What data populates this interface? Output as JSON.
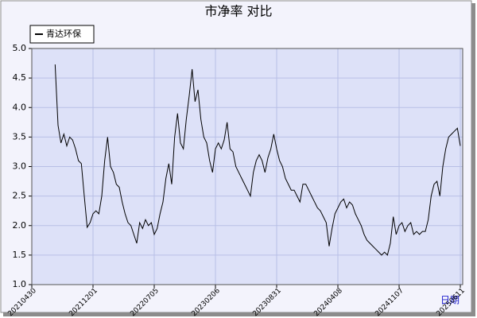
{
  "chart_data": {
    "type": "line",
    "title": "市净率  对比",
    "x_label": "日期",
    "legend": "top-left",
    "grid": true,
    "ylim": [
      1,
      5
    ],
    "yticks": [
      {
        "value": 1,
        "label": "1.0"
      },
      1.5,
      {
        "value": 2,
        "label": "2.0"
      },
      2.5,
      {
        "value": 3,
        "label": "3.0"
      },
      3.5,
      {
        "value": 4,
        "label": "4.0"
      },
      4.5,
      {
        "value": 5,
        "label": "5.0"
      }
    ],
    "categories": [
      "20210430",
      null,
      null,
      null,
      null,
      null,
      null,
      null,
      null,
      null,
      null,
      null,
      null,
      null,
      null,
      null,
      null,
      null,
      null,
      null,
      null,
      "20211201",
      null,
      null,
      null,
      null,
      null,
      null,
      null,
      null,
      null,
      null,
      null,
      null,
      null,
      null,
      null,
      null,
      null,
      null,
      null,
      null,
      "20220705",
      null,
      null,
      null,
      null,
      null,
      null,
      null,
      null,
      null,
      null,
      null,
      null,
      null,
      null,
      null,
      null,
      null,
      null,
      null,
      null,
      "20230206",
      null,
      null,
      null,
      null,
      null,
      null,
      null,
      null,
      null,
      null,
      null,
      null,
      null,
      null,
      null,
      null,
      null,
      null,
      null,
      null,
      "20230831",
      null,
      null,
      null,
      null,
      null,
      null,
      null,
      null,
      null,
      null,
      null,
      null,
      null,
      null,
      null,
      null,
      null,
      null,
      null,
      null,
      "20240408",
      null,
      null,
      null,
      null,
      null,
      null,
      null,
      null,
      null,
      null,
      null,
      null,
      null,
      null,
      null,
      null,
      null,
      null,
      null,
      null,
      "20241107",
      null,
      null,
      null,
      null,
      null,
      null,
      null,
      null,
      null,
      null,
      null,
      null,
      null,
      null,
      null,
      null,
      null,
      null,
      null,
      null,
      "20250611"
    ],
    "series": [
      {
        "name": "青达环保",
        "color": "#000000",
        "values": [
          null,
          null,
          null,
          null,
          null,
          null,
          null,
          null,
          4.73,
          3.7,
          3.4,
          3.55,
          3.35,
          3.5,
          3.45,
          3.3,
          3.1,
          3.05,
          2.5,
          1.97,
          2.05,
          2.2,
          2.25,
          2.2,
          2.5,
          3.1,
          3.5,
          3.0,
          2.9,
          2.7,
          2.65,
          2.4,
          2.2,
          2.05,
          2.0,
          1.85,
          1.7,
          2.05,
          1.95,
          2.1,
          2.0,
          2.05,
          1.85,
          1.95,
          2.2,
          2.4,
          2.8,
          3.05,
          2.7,
          3.5,
          3.9,
          3.4,
          3.3,
          3.8,
          4.2,
          4.65,
          4.1,
          4.3,
          3.8,
          3.5,
          3.4,
          3.1,
          2.9,
          3.3,
          3.4,
          3.3,
          3.45,
          3.75,
          3.3,
          3.25,
          3.0,
          2.9,
          2.8,
          2.7,
          2.6,
          2.5,
          2.9,
          3.1,
          3.2,
          3.1,
          2.9,
          3.15,
          3.3,
          3.55,
          3.3,
          3.1,
          3.0,
          2.8,
          2.7,
          2.6,
          2.6,
          2.5,
          2.4,
          2.7,
          2.7,
          2.6,
          2.5,
          2.4,
          2.3,
          2.25,
          2.15,
          2.05,
          1.65,
          1.95,
          2.2,
          2.3,
          2.4,
          2.45,
          2.3,
          2.4,
          2.35,
          2.2,
          2.1,
          2.0,
          1.85,
          1.75,
          1.7,
          1.65,
          1.6,
          1.55,
          1.5,
          1.55,
          1.5,
          1.7,
          2.15,
          1.85,
          2.0,
          2.05,
          1.9,
          2.0,
          2.05,
          1.85,
          1.9,
          1.85,
          1.9,
          1.9,
          2.1,
          2.5,
          2.7,
          2.75,
          2.5,
          3.0,
          3.3,
          3.5,
          3.55,
          3.6,
          3.65,
          3.35
        ]
      }
    ]
  }
}
